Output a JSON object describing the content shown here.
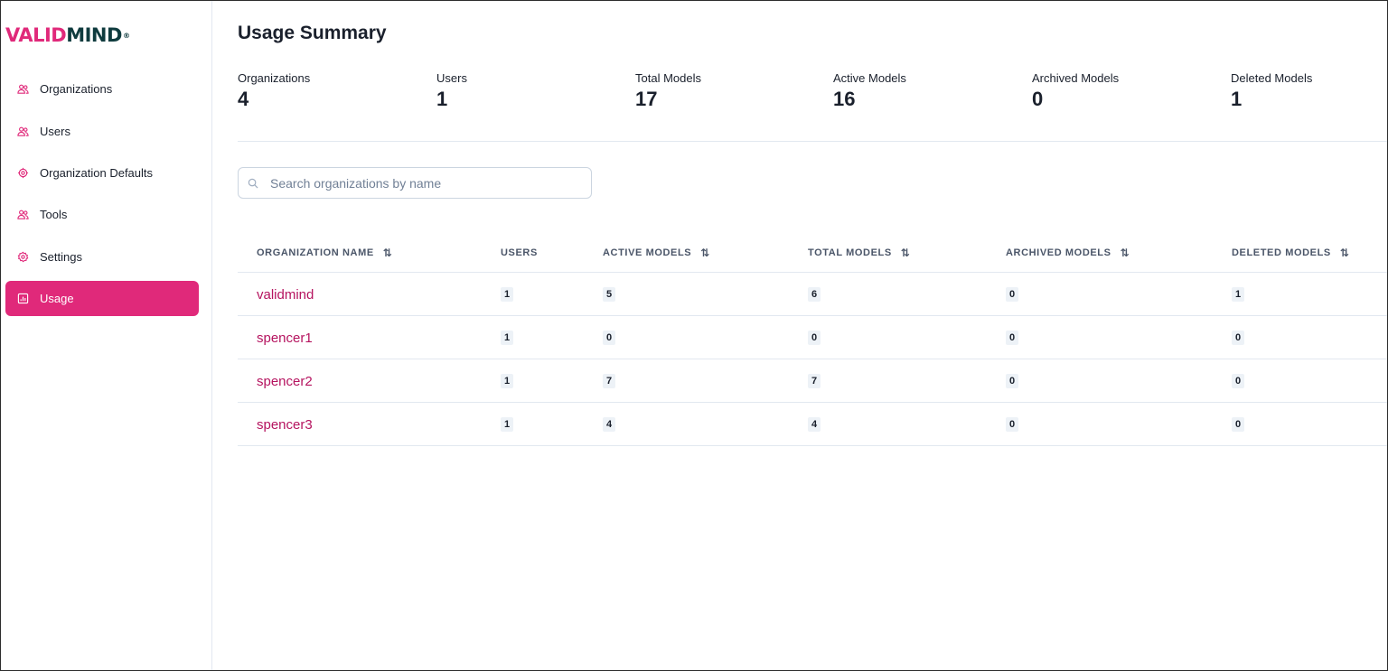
{
  "brand": {
    "part1": "VALID",
    "part2": "MIND",
    "reg": "®",
    "accent": "#e0297a",
    "dark": "#0f3b3e"
  },
  "sidebar": {
    "items": [
      {
        "label": "Organizations",
        "icon": "users-icon",
        "active": false
      },
      {
        "label": "Users",
        "icon": "users-icon",
        "active": false
      },
      {
        "label": "Organization Defaults",
        "icon": "cog-icon",
        "active": false
      },
      {
        "label": "Tools",
        "icon": "users-icon",
        "active": false
      },
      {
        "label": "Settings",
        "icon": "gear-icon",
        "active": false
      },
      {
        "label": "Usage",
        "icon": "chart-icon",
        "active": true
      }
    ]
  },
  "page": {
    "title": "Usage Summary"
  },
  "stats": [
    {
      "label": "Organizations",
      "value": "4"
    },
    {
      "label": "Users",
      "value": "1"
    },
    {
      "label": "Total Models",
      "value": "17"
    },
    {
      "label": "Active Models",
      "value": "16"
    },
    {
      "label": "Archived Models",
      "value": "0"
    },
    {
      "label": "Deleted Models",
      "value": "1"
    }
  ],
  "search": {
    "placeholder": "Search organizations by name",
    "value": ""
  },
  "table": {
    "columns": [
      {
        "label": "ORGANIZATION NAME",
        "sortable": true
      },
      {
        "label": "USERS",
        "sortable": false
      },
      {
        "label": "ACTIVE MODELS",
        "sortable": true
      },
      {
        "label": "TOTAL MODELS",
        "sortable": true
      },
      {
        "label": "ARCHIVED MODELS",
        "sortable": true
      },
      {
        "label": "DELETED MODELS",
        "sortable": true
      }
    ],
    "sort_glyph": "⇅",
    "rows": [
      {
        "name": "validmind",
        "users": "1",
        "active": "5",
        "total": "6",
        "archived": "0",
        "deleted": "1"
      },
      {
        "name": "spencer1",
        "users": "1",
        "active": "0",
        "total": "0",
        "archived": "0",
        "deleted": "0"
      },
      {
        "name": "spencer2",
        "users": "1",
        "active": "7",
        "total": "7",
        "archived": "0",
        "deleted": "0"
      },
      {
        "name": "spencer3",
        "users": "1",
        "active": "4",
        "total": "4",
        "archived": "0",
        "deleted": "0"
      }
    ]
  }
}
